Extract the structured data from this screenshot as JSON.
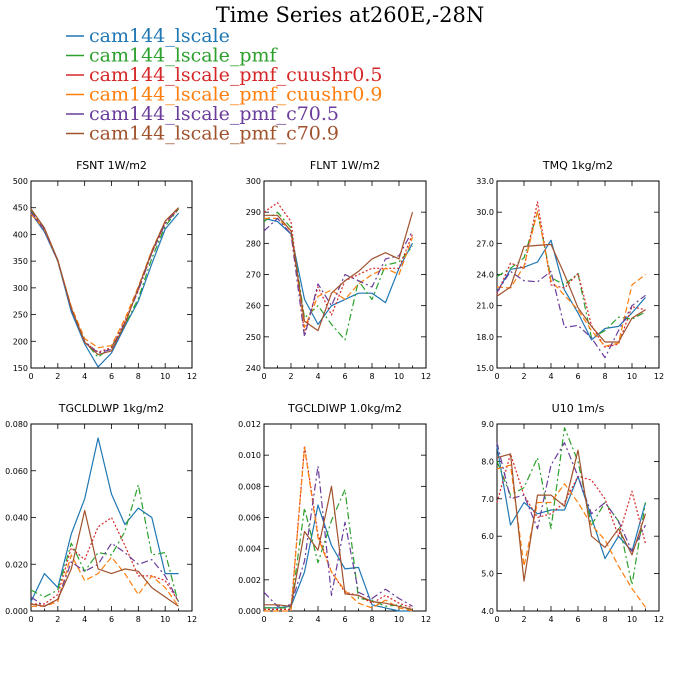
{
  "chart_data": {
    "type": "line",
    "title": "Time Series at260E,-28N",
    "legend": {
      "placement": "top-left",
      "entries": [
        {
          "name": "cam144_lscale",
          "color": "#1f77b4",
          "dash": "solid"
        },
        {
          "name": "cam144_lscale_pmf",
          "color": "#2ca02c",
          "dash": "dashdot"
        },
        {
          "name": "cam144_lscale_pmf_cuushr0.5",
          "color": "#d62728",
          "dash": "dotted"
        },
        {
          "name": "cam144_lscale_pmf_cuushr0.9",
          "color": "#ff7f0e",
          "dash": "dashed"
        },
        {
          "name": "cam144_lscale_pmf_c70.5",
          "color": "#6a3d9a",
          "dash": "dashdot"
        },
        {
          "name": "cam144_lscale_pmf_c70.9",
          "color": "#a0522d",
          "dash": "solid"
        }
      ]
    },
    "panels": [
      {
        "title": "FSNT   1W/m2",
        "xlim": [
          0,
          12
        ],
        "ylim": [
          150,
          500
        ],
        "xticks": [
          "0",
          "2",
          "4",
          "6",
          "8",
          "10",
          "12"
        ],
        "yticks": [
          "150",
          "200",
          "250",
          "300",
          "350",
          "400",
          "450",
          "500"
        ],
        "x": [
          0,
          1,
          2,
          3,
          4,
          5,
          6,
          7,
          8,
          9,
          10,
          11
        ],
        "series": [
          {
            "name": "cam144_lscale",
            "values": [
              440,
              405,
              350,
              255,
              195,
              152,
              178,
              228,
              275,
              345,
              410,
              440
            ]
          },
          {
            "name": "cam144_lscale_pmf",
            "values": [
              445,
              412,
              350,
              262,
              200,
              170,
              190,
              230,
              280,
              355,
              415,
              448
            ]
          },
          {
            "name": "cam144_lscale_pmf_cuushr0.5",
            "values": [
              442,
              408,
              352,
              262,
              198,
              180,
              188,
              238,
              295,
              365,
              420,
              448
            ]
          },
          {
            "name": "cam144_lscale_pmf_cuushr0.9",
            "values": [
              438,
              410,
              350,
              265,
              205,
              188,
              192,
              242,
              302,
              370,
              425,
              450
            ]
          },
          {
            "name": "cam144_lscale_pmf_c70.5",
            "values": [
              442,
              410,
              350,
              260,
              200,
              178,
              185,
              235,
              295,
              365,
              420,
              450
            ]
          },
          {
            "name": "cam144_lscale_pmf_c70.9",
            "values": [
              448,
              412,
              352,
              262,
              198,
              175,
              182,
              232,
              300,
              368,
              425,
              450
            ]
          }
        ]
      },
      {
        "title": "FLNT   1W/m2",
        "xlim": [
          0,
          12
        ],
        "ylim": [
          240,
          300
        ],
        "xticks": [
          "0",
          "2",
          "4",
          "6",
          "8",
          "10",
          "12"
        ],
        "yticks": [
          "240",
          "250",
          "260",
          "270",
          "280",
          "290",
          "300"
        ],
        "x": [
          0,
          1,
          2,
          3,
          4,
          5,
          6,
          7,
          8,
          9,
          10,
          11
        ],
        "series": [
          {
            "name": "cam144_lscale",
            "values": [
              288,
              287,
              283,
              262,
              254,
              260,
              262,
              264,
              264,
              261,
              272,
              280
            ]
          },
          {
            "name": "cam144_lscale_pmf",
            "values": [
              287,
              290,
              285,
              256,
              260,
              254,
              249,
              268,
              262,
              273,
              274,
              279
            ]
          },
          {
            "name": "cam144_lscale_pmf_cuushr0.5",
            "values": [
              290,
              293,
              287,
              251,
              266,
              257,
              268,
              270,
              272,
              272,
              272,
              283
            ]
          },
          {
            "name": "cam144_lscale_pmf_cuushr0.9",
            "values": [
              288,
              288,
              284,
              253,
              263,
              265,
              262,
              267,
              270,
              272,
              270,
              282
            ]
          },
          {
            "name": "cam144_lscale_pmf_c70.5",
            "values": [
              284,
              288,
              283,
              250,
              267,
              260,
              270,
              268,
              266,
              275,
              276,
              284
            ]
          },
          {
            "name": "cam144_lscale_pmf_c70.9",
            "values": [
              289,
              289,
              284,
              255,
              252,
              264,
              268,
              271,
              275,
              277,
              275,
              290
            ]
          }
        ]
      },
      {
        "title": "TMQ   1kg/m2",
        "xlim": [
          0,
          12
        ],
        "ylim": [
          15,
          33
        ],
        "xticks": [
          "0",
          "2",
          "4",
          "6",
          "8",
          "10",
          "12"
        ],
        "yticks": [
          "15.0",
          "18.0",
          "21.0",
          "24.0",
          "27.0",
          "30.0",
          "33.0"
        ],
        "x": [
          0,
          1,
          2,
          3,
          4,
          5,
          6,
          7,
          8,
          9,
          10,
          11
        ],
        "series": [
          {
            "name": "cam144_lscale",
            "values": [
              22.3,
              24.5,
              24.7,
              25.2,
              27.3,
              22.5,
              20.3,
              17.7,
              18.8,
              19.0,
              20.3,
              21.8
            ]
          },
          {
            "name": "cam144_lscale_pmf",
            "values": [
              23.8,
              24.6,
              25.6,
              30.0,
              23.7,
              23.0,
              24.1,
              17.9,
              18.6,
              19.9,
              19.7,
              20.4
            ]
          },
          {
            "name": "cam144_lscale_pmf_cuushr0.5",
            "values": [
              22.1,
              25.1,
              24.6,
              31.0,
              23.0,
              22.7,
              24.1,
              19.1,
              17.0,
              17.3,
              20.9,
              20.6
            ]
          },
          {
            "name": "cam144_lscale_pmf_cuushr0.9",
            "values": [
              22.8,
              22.7,
              24.8,
              30.1,
              23.4,
              22.0,
              20.6,
              18.6,
              17.1,
              17.4,
              23.0,
              24.0
            ]
          },
          {
            "name": "cam144_lscale_pmf_c70.5",
            "values": [
              22.3,
              24.3,
              23.4,
              23.3,
              24.3,
              18.9,
              19.1,
              17.9,
              16.0,
              18.6,
              21.0,
              22.0
            ]
          },
          {
            "name": "cam144_lscale_pmf_c70.9",
            "values": [
              21.9,
              22.8,
              26.7,
              26.8,
              26.9,
              24.0,
              20.8,
              19.0,
              17.5,
              17.5,
              19.8,
              20.6
            ]
          }
        ]
      },
      {
        "title": "TGCLDLWP   1kg/m2",
        "xlim": [
          0,
          12
        ],
        "ylim": [
          0,
          0.08
        ],
        "xticks": [
          "0",
          "2",
          "4",
          "6",
          "8",
          "10",
          "12"
        ],
        "yticks": [
          "0.000",
          "0.020",
          "0.040",
          "0.060",
          "0.080"
        ],
        "x": [
          0,
          1,
          2,
          3,
          4,
          5,
          6,
          7,
          8,
          9,
          10,
          11
        ],
        "series": [
          {
            "name": "cam144_lscale",
            "values": [
              0.004,
              0.016,
              0.01,
              0.033,
              0.048,
              0.074,
              0.05,
              0.037,
              0.044,
              0.04,
              0.016,
              0.016
            ]
          },
          {
            "name": "cam144_lscale_pmf",
            "values": [
              0.009,
              0.006,
              0.009,
              0.029,
              0.017,
              0.025,
              0.024,
              0.034,
              0.054,
              0.024,
              0.025,
              0.003
            ]
          },
          {
            "name": "cam144_lscale_pmf_cuushr0.5",
            "values": [
              0.003,
              0.003,
              0.007,
              0.027,
              0.022,
              0.036,
              0.04,
              0.028,
              0.015,
              0.015,
              0.013,
              0.004
            ]
          },
          {
            "name": "cam144_lscale_pmf_cuushr0.9",
            "values": [
              0.002,
              0.002,
              0.004,
              0.024,
              0.013,
              0.016,
              0.023,
              0.016,
              0.007,
              0.015,
              0.01,
              0.002
            ]
          },
          {
            "name": "cam144_lscale_pmf_c70.5",
            "values": [
              0.006,
              0.002,
              0.005,
              0.021,
              0.017,
              0.02,
              0.029,
              0.025,
              0.02,
              0.022,
              0.015,
              0.004
            ]
          },
          {
            "name": "cam144_lscale_pmf_c70.9",
            "values": [
              0.003,
              0.002,
              0.005,
              0.018,
              0.043,
              0.018,
              0.016,
              0.018,
              0.017,
              0.01,
              0.006,
              0.002
            ]
          }
        ]
      },
      {
        "title": "TGCLDIWP   1.0kg/m2",
        "xlim": [
          0,
          12
        ],
        "ylim": [
          0,
          0.012
        ],
        "xticks": [
          "0",
          "2",
          "4",
          "6",
          "8",
          "10",
          "12"
        ],
        "yticks": [
          "0.000",
          "0.002",
          "0.004",
          "0.006",
          "0.008",
          "0.010",
          "0.012"
        ],
        "x": [
          0,
          1,
          2,
          3,
          4,
          5,
          6,
          7,
          8,
          9,
          10,
          11
        ],
        "series": [
          {
            "name": "cam144_lscale",
            "values": [
              0.0002,
              0.0002,
              0.0003,
              0.0025,
              0.0068,
              0.0042,
              0.0027,
              0.0028,
              0.0004,
              0.0002,
              0.0,
              0.0
            ]
          },
          {
            "name": "cam144_lscale_pmf",
            "values": [
              0.0002,
              0.0002,
              0.0002,
              0.0066,
              0.0031,
              0.0058,
              0.0078,
              0.0008,
              0.0007,
              0.0003,
              0.0004,
              0.0
            ]
          },
          {
            "name": "cam144_lscale_pmf_cuushr0.5",
            "values": [
              0.0001,
              0.0001,
              0.0001,
              0.0106,
              0.0049,
              0.0025,
              0.0012,
              0.001,
              0.0005,
              0.001,
              0.0005,
              0.0002
            ]
          },
          {
            "name": "cam144_lscale_pmf_cuushr0.9",
            "values": [
              0.0,
              0.0,
              0.0,
              0.0105,
              0.0047,
              0.0025,
              0.0013,
              0.0005,
              0.0002,
              0.0007,
              0.0002,
              0.0
            ]
          },
          {
            "name": "cam144_lscale_pmf_c70.5",
            "values": [
              0.0012,
              0.0003,
              0.0004,
              0.0032,
              0.0093,
              0.001,
              0.0057,
              0.0012,
              0.0008,
              0.0014,
              0.0008,
              0.0003
            ]
          },
          {
            "name": "cam144_lscale_pmf_c70.9",
            "values": [
              0.0004,
              0.0004,
              0.0003,
              0.0051,
              0.0039,
              0.008,
              0.0011,
              0.001,
              0.0006,
              0.0005,
              0.0003,
              0.0001
            ]
          }
        ]
      },
      {
        "title": "U10   1m/s",
        "xlim": [
          0,
          12
        ],
        "ylim": [
          4,
          9
        ],
        "xticks": [
          "0",
          "2",
          "4",
          "6",
          "8",
          "10",
          "12"
        ],
        "yticks": [
          "4.0",
          "5.0",
          "6.0",
          "7.0",
          "8.0",
          "9.0"
        ],
        "x": [
          0,
          1,
          2,
          3,
          4,
          5,
          6,
          7,
          8,
          9,
          10,
          11
        ],
        "series": [
          {
            "name": "cam144_lscale",
            "values": [
              8.4,
              6.3,
              6.9,
              6.6,
              6.7,
              6.7,
              7.6,
              6.5,
              5.4,
              6.0,
              5.6,
              6.9
            ]
          },
          {
            "name": "cam144_lscale_pmf",
            "values": [
              8.0,
              7.1,
              7.3,
              8.1,
              6.2,
              8.9,
              8.0,
              6.3,
              6.9,
              6.4,
              4.7,
              6.9
            ]
          },
          {
            "name": "cam144_lscale_pmf_cuushr0.5",
            "values": [
              6.9,
              8.2,
              7.1,
              6.5,
              6.6,
              6.9,
              7.6,
              7.5,
              7.0,
              6.0,
              7.2,
              5.8
            ]
          },
          {
            "name": "cam144_lscale_pmf_cuushr0.9",
            "values": [
              7.8,
              7.9,
              5.2,
              6.9,
              6.9,
              7.4,
              6.9,
              6.3,
              5.9,
              5.2,
              4.6,
              4.1
            ]
          },
          {
            "name": "cam144_lscale_pmf_c70.5",
            "values": [
              8.5,
              7.0,
              7.1,
              6.2,
              7.9,
              8.5,
              7.6,
              6.6,
              6.9,
              6.4,
              5.6,
              6.3
            ]
          },
          {
            "name": "cam144_lscale_pmf_c70.9",
            "values": [
              8.1,
              8.2,
              4.8,
              7.1,
              7.1,
              6.8,
              8.3,
              6.0,
              5.7,
              6.2,
              5.5,
              6.6
            ]
          }
        ]
      }
    ]
  }
}
